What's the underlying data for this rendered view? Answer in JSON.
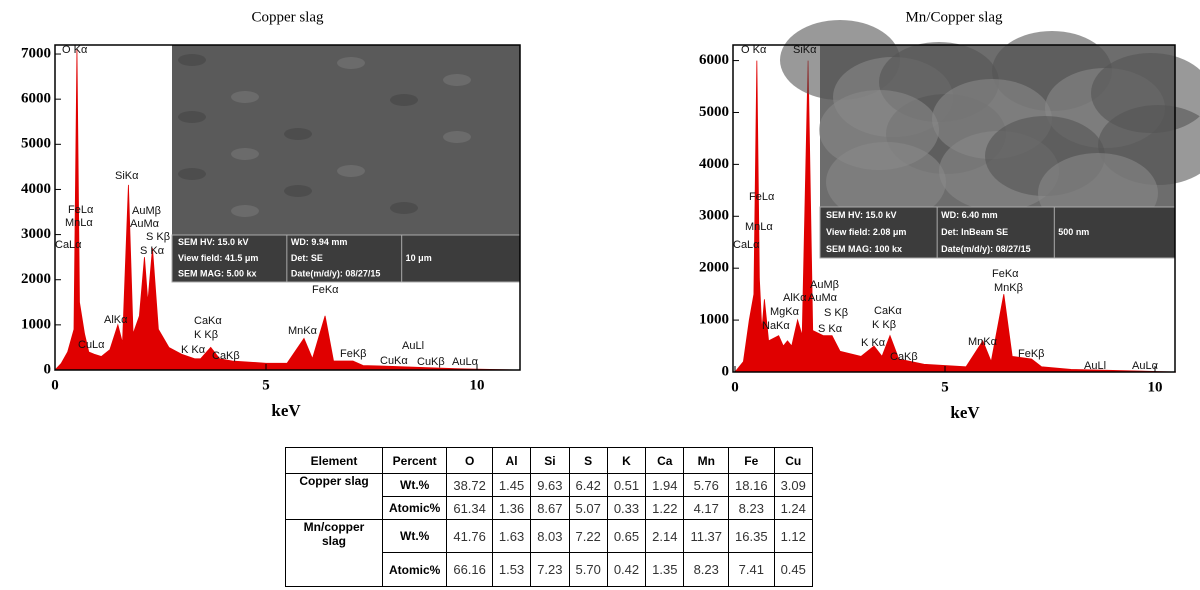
{
  "chart_data": [
    {
      "type": "area",
      "title": "Copper slag",
      "x_label": "keV",
      "color": "#e00000",
      "x": [
        0,
        0.15,
        0.3,
        0.45,
        0.52,
        0.58,
        0.7,
        0.8,
        0.93,
        1.1,
        1.3,
        1.49,
        1.6,
        1.74,
        1.85,
        2.0,
        2.12,
        2.2,
        2.31,
        2.45,
        2.7,
        3.0,
        3.31,
        3.45,
        3.69,
        3.9,
        4.2,
        5.0,
        5.5,
        5.9,
        6.1,
        6.4,
        6.6,
        7.06,
        7.3,
        8.0,
        8.9,
        9.5,
        10,
        11
      ],
      "values": [
        0,
        150,
        400,
        900,
        7100,
        1500,
        800,
        400,
        350,
        300,
        450,
        1000,
        600,
        4100,
        800,
        1200,
        2500,
        1500,
        2700,
        900,
        500,
        350,
        250,
        250,
        500,
        250,
        200,
        150,
        150,
        700,
        250,
        1200,
        200,
        200,
        100,
        80,
        50,
        30,
        20,
        0
      ],
      "xlim": [
        0,
        11
      ],
      "ylim": [
        0,
        7200
      ],
      "xticks": [
        0,
        5,
        10
      ],
      "yticks": [
        0,
        1000,
        2000,
        3000,
        4000,
        5000,
        6000,
        7000
      ],
      "annotations": [
        "O Kα",
        "CaLα",
        "FeLα",
        "MnLα",
        "CuLα",
        "AlKα",
        "SiKα",
        "AuMβ",
        "AuMα",
        "S Kβ",
        "S Kα",
        "K Kα",
        "CaKα",
        "K Kβ",
        "CaKβ",
        "MnKα",
        "FeKα",
        "FeKβ",
        "CuKα",
        "AuLl",
        "CuKβ",
        "AuLα"
      ],
      "inset": [
        "SEM HV: 15.0 kV",
        "WD: 9.94 mm",
        "View field: 41.5 μm",
        "Det: SE",
        "10 μm",
        "SEM MAG: 5.00 kx",
        "Date(m/d/y): 08/27/15"
      ]
    },
    {
      "type": "area",
      "title": "Mn/Copper slag",
      "x_label": "keV",
      "color": "#e00000",
      "x": [
        0,
        0.2,
        0.34,
        0.45,
        0.52,
        0.58,
        0.64,
        0.7,
        0.8,
        1.04,
        1.15,
        1.25,
        1.35,
        1.49,
        1.6,
        1.74,
        1.85,
        2.1,
        2.31,
        2.5,
        3.0,
        3.31,
        3.5,
        3.69,
        3.9,
        4.5,
        5.5,
        5.9,
        6.1,
        6.4,
        6.6,
        7.06,
        7.3,
        8.0,
        10.5
      ],
      "values": [
        0,
        200,
        1000,
        1500,
        6000,
        1800,
        800,
        1400,
        600,
        700,
        500,
        600,
        500,
        1000,
        700,
        6000,
        800,
        700,
        700,
        400,
        300,
        500,
        300,
        700,
        250,
        150,
        100,
        600,
        200,
        1500,
        300,
        250,
        100,
        50,
        0
      ],
      "xlim": [
        0,
        10.5
      ],
      "ylim": [
        0,
        6300
      ],
      "xticks": [
        0,
        5,
        10
      ],
      "yticks": [
        0,
        1000,
        2000,
        3000,
        4000,
        5000,
        6000
      ],
      "annotations": [
        "O Kα",
        "SiKα",
        "FeLα",
        "MnLα",
        "CaLα",
        "NaKα",
        "MgKα",
        "AlKα",
        "AuMβ",
        "AuMα",
        "S Kβ",
        "S Kα",
        "K Kα",
        "CaKα",
        "K Kβ",
        "CaKβ",
        "MnKα",
        "FeKα",
        "MnKβ",
        "FeKβ",
        "AuLl",
        "AuLα"
      ],
      "inset": [
        "SEM HV: 15.0 kV",
        "WD: 6.40 mm",
        "View field: 2.08 μm",
        "Det: InBeam SE",
        "500 nm",
        "SEM MAG: 100 kx",
        "Date(m/d/y): 08/27/15"
      ]
    }
  ],
  "table": {
    "headers": [
      "Element",
      "Percent",
      "O",
      "Al",
      "Si",
      "S",
      "K",
      "Ca",
      "Mn",
      "Fe",
      "Cu"
    ],
    "rows": [
      {
        "element": "Copper slag",
        "measures": [
          {
            "type": "Wt.%",
            "values": [
              "38.72",
              "1.45",
              "9.63",
              "6.42",
              "0.51",
              "1.94",
              "5.76",
              "18.16",
              "3.09"
            ]
          },
          {
            "type": "Atomic%",
            "values": [
              "61.34",
              "1.36",
              "8.67",
              "5.07",
              "0.33",
              "1.22",
              "4.17",
              "8.23",
              "1.24"
            ]
          }
        ]
      },
      {
        "element": "Mn/copper slag",
        "measures": [
          {
            "type": "Wt.%",
            "values": [
              "41.76",
              "1.63",
              "8.03",
              "7.22",
              "0.65",
              "2.14",
              "11.37",
              "16.35",
              "1.12"
            ]
          },
          {
            "type": "Atomic%",
            "values": [
              "66.16",
              "1.53",
              "7.23",
              "5.70",
              "0.42",
              "1.35",
              "8.23",
              "7.41",
              "0.45"
            ]
          }
        ]
      }
    ]
  }
}
